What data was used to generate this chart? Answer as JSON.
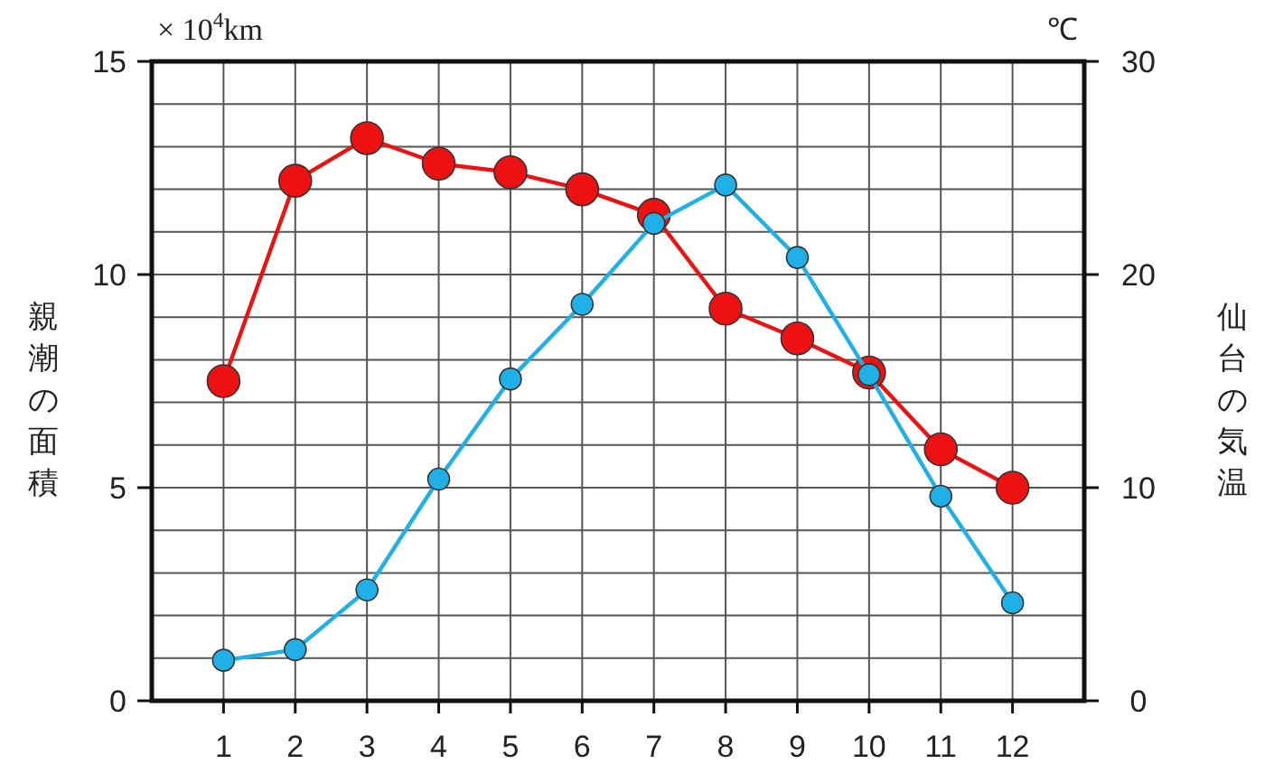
{
  "chart_data": {
    "type": "line",
    "ylabel": "親潮の面積",
    "y2label": "仙台の気温",
    "annotations": [
      "× 10$^{4}$km",
      "℃"
    ],
    "x": [
      1,
      2,
      3,
      4,
      5,
      6,
      7,
      8,
      9,
      10,
      11,
      12
    ],
    "xlim": [
      0,
      13
    ],
    "xticks": [
      1,
      2,
      3,
      4,
      5,
      6,
      7,
      8,
      9,
      10,
      11,
      12
    ],
    "ylim": [
      0,
      15
    ],
    "yticks": [
      0,
      5,
      10,
      15
    ],
    "y2lim": [
      0,
      30
    ],
    "y2ticks": [
      0,
      10,
      20,
      30
    ],
    "grid": true,
    "marker": "circle",
    "line_style": "solid",
    "series": [
      {
        "color": "#ee1111",
        "values": [
          7.5,
          12.2,
          13.2,
          12.6,
          12.4,
          12.0,
          11.4,
          9.2,
          8.5,
          7.7,
          5.9,
          5.0
        ]
      },
      {
        "color": "#1fb0e8",
        "axis": "y2",
        "values": [
          1.9,
          2.4,
          5.2,
          10.4,
          15.1,
          18.6,
          22.4,
          24.2,
          20.8,
          15.3,
          9.6,
          4.6
        ]
      }
    ]
  }
}
